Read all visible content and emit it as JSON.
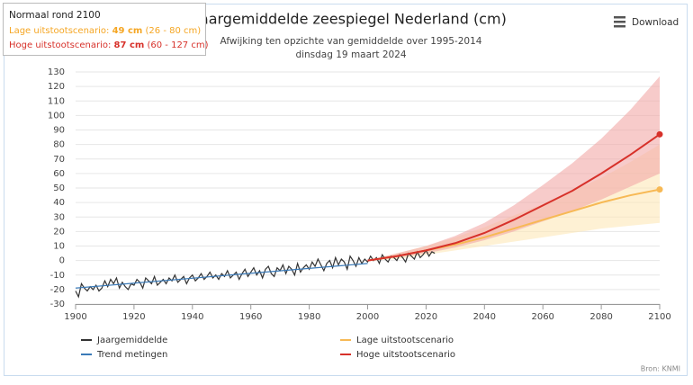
{
  "chart_data": {
    "type": "line",
    "title": "Jaargemiddelde zeespiegel Nederland (cm)",
    "subtitle": "Afwijking ten opzichte van gemiddelde over 1995-2014",
    "date": "dinsdag 19 maart 2024",
    "menu": "Download",
    "credits": "Bron: KNMI",
    "tooltip": {
      "title": "Normaal rond 2100",
      "lines": [
        {
          "label": "Lage uitstootscenario:",
          "value": "49 cm",
          "range": "(26 - 80 cm)",
          "color": "#f5a623"
        },
        {
          "label": "Hoge uitstootscenario:",
          "value": "87 cm",
          "range": "(60 - 127 cm)",
          "color": "#d7312a"
        }
      ]
    },
    "xlim": [
      1900,
      2100
    ],
    "xticks": [
      1900,
      1920,
      1940,
      1960,
      1980,
      2000,
      2020,
      2040,
      2060,
      2080,
      2100
    ],
    "ylim": [
      -30,
      130
    ],
    "yticks": [
      -30,
      -20,
      -10,
      0,
      10,
      20,
      30,
      40,
      50,
      60,
      70,
      80,
      90,
      100,
      110,
      120,
      130
    ],
    "grid": true,
    "legend": "bottom",
    "series": [
      {
        "name": "Jaargemiddelde",
        "color": "#333333",
        "x": [
          1900,
          1901,
          1902,
          1903,
          1904,
          1905,
          1906,
          1907,
          1908,
          1909,
          1910,
          1911,
          1912,
          1913,
          1914,
          1915,
          1916,
          1917,
          1918,
          1919,
          1920,
          1921,
          1922,
          1923,
          1924,
          1925,
          1926,
          1927,
          1928,
          1929,
          1930,
          1931,
          1932,
          1933,
          1934,
          1935,
          1936,
          1937,
          1938,
          1939,
          1940,
          1941,
          1942,
          1943,
          1944,
          1945,
          1946,
          1947,
          1948,
          1949,
          1950,
          1951,
          1952,
          1953,
          1954,
          1955,
          1956,
          1957,
          1958,
          1959,
          1960,
          1961,
          1962,
          1963,
          1964,
          1965,
          1966,
          1967,
          1968,
          1969,
          1970,
          1971,
          1972,
          1973,
          1974,
          1975,
          1976,
          1977,
          1978,
          1979,
          1980,
          1981,
          1982,
          1983,
          1984,
          1985,
          1986,
          1987,
          1988,
          1989,
          1990,
          1991,
          1992,
          1993,
          1994,
          1995,
          1996,
          1997,
          1998,
          1999,
          2000,
          2001,
          2002,
          2003,
          2004,
          2005,
          2006,
          2007,
          2008,
          2009,
          2010,
          2011,
          2012,
          2013,
          2014,
          2015,
          2016,
          2017,
          2018,
          2019,
          2020,
          2021,
          2022,
          2023
        ],
        "values": [
          -21,
          -25,
          -16,
          -19,
          -21,
          -18,
          -20,
          -17,
          -21,
          -19,
          -14,
          -18,
          -13,
          -16,
          -12,
          -19,
          -15,
          -18,
          -20,
          -16,
          -17,
          -13,
          -15,
          -19,
          -12,
          -14,
          -16,
          -11,
          -17,
          -15,
          -13,
          -16,
          -12,
          -14,
          -10,
          -15,
          -13,
          -11,
          -16,
          -12,
          -10,
          -14,
          -12,
          -9,
          -13,
          -11,
          -8,
          -12,
          -10,
          -13,
          -9,
          -11,
          -7,
          -12,
          -10,
          -8,
          -13,
          -9,
          -6,
          -11,
          -8,
          -5,
          -10,
          -7,
          -12,
          -6,
          -4,
          -9,
          -11,
          -5,
          -7,
          -3,
          -9,
          -4,
          -6,
          -10,
          -2,
          -8,
          -5,
          -3,
          -6,
          -1,
          -4,
          1,
          -3,
          -7,
          -2,
          0,
          -5,
          2,
          -3,
          1,
          -1,
          -6,
          3,
          0,
          -4,
          2,
          -2,
          1,
          -1,
          3,
          0,
          2,
          -2,
          4,
          1,
          -1,
          3,
          2,
          0,
          4,
          2,
          -1,
          5,
          3,
          1,
          6,
          2,
          4,
          7,
          3,
          6,
          5
        ]
      },
      {
        "name": "Trend metingen",
        "color": "#3a7ab8",
        "x": [
          1900,
          2000
        ],
        "values": [
          -19,
          -2
        ]
      },
      {
        "name": "Lage uitstootscenario",
        "color": "#f7b955",
        "band_color": "#fde7b8",
        "x": [
          2000,
          2010,
          2020,
          2030,
          2040,
          2050,
          2060,
          2070,
          2080,
          2090,
          2100
        ],
        "values": [
          0,
          3,
          7,
          11,
          16,
          22,
          28,
          34,
          40,
          45,
          49
        ],
        "low": [
          0,
          1,
          4,
          7,
          10,
          13,
          16,
          19,
          22,
          24,
          26
        ],
        "high": [
          0,
          5,
          10,
          16,
          23,
          31,
          39,
          48,
          57,
          68,
          80
        ]
      },
      {
        "name": "Hoge uitstootscenario",
        "color": "#d7312a",
        "band_color": "#f2a9a6",
        "x": [
          2000,
          2010,
          2020,
          2030,
          2040,
          2050,
          2060,
          2070,
          2080,
          2090,
          2100
        ],
        "values": [
          0,
          3,
          7,
          12,
          19,
          28,
          38,
          48,
          60,
          73,
          87
        ],
        "low": [
          0,
          2,
          5,
          9,
          14,
          20,
          27,
          34,
          42,
          51,
          60
        ],
        "high": [
          0,
          5,
          10,
          17,
          26,
          38,
          52,
          67,
          84,
          104,
          127
        ]
      }
    ]
  }
}
